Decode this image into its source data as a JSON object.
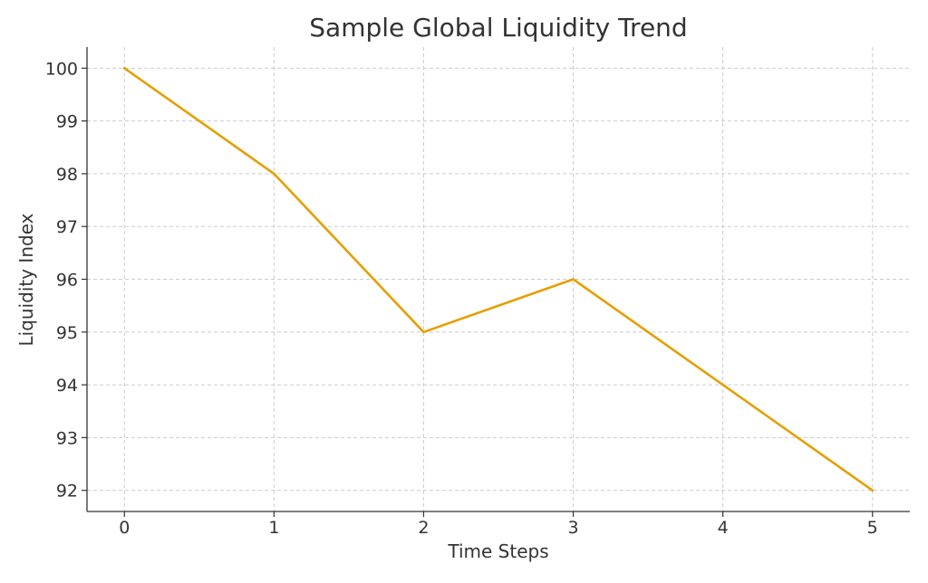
{
  "chart_data": {
    "type": "line",
    "title": "Sample Global Liquidity Trend",
    "xlabel": "Time Steps",
    "ylabel": "Liquidity Index",
    "x": [
      0,
      1,
      2,
      3,
      4,
      5
    ],
    "series": [
      {
        "values": [
          100,
          98,
          95,
          96,
          94,
          92
        ],
        "color": "#e69f00"
      }
    ],
    "xticks": [
      0,
      1,
      2,
      3,
      4,
      5
    ],
    "yticks": [
      92,
      93,
      94,
      95,
      96,
      97,
      98,
      99,
      100
    ],
    "xlim": [
      -0.25,
      5.25
    ],
    "ylim": [
      91.6,
      100.4
    ],
    "grid": true,
    "legend": "none"
  }
}
